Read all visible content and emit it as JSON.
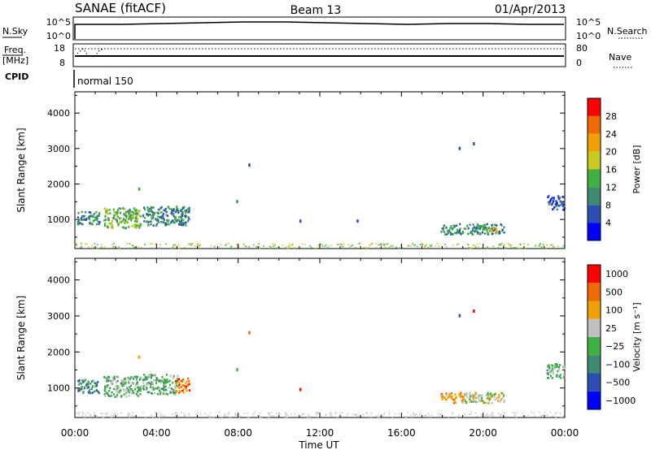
{
  "header": {
    "station": "SANAE (fitACF)",
    "beam": "Beam 13",
    "date": "01/Apr/2013"
  },
  "strip_labels": {
    "nsky": "N.Sky",
    "nsky_ticks": [
      "10^5",
      "10^0"
    ],
    "nsearch": "N.Search",
    "nsearch_ticks": [
      "10^5",
      "10^0"
    ],
    "freq": "Freq.",
    "freq_unit": "[MHz]",
    "freq_ticks": [
      "18",
      "8"
    ],
    "nave": "Nave",
    "nave_ticks": [
      "80",
      "0"
    ],
    "cpid": "CPID",
    "cpid_mode": "normal 150"
  },
  "chart_data": [
    {
      "type": "heatmap",
      "panel": "power",
      "ylabel": "Slant Range [km]",
      "yticks": [
        "1000",
        "2000",
        "3000",
        "4000"
      ],
      "ylim": [
        180,
        4600
      ],
      "xlim": [
        0,
        24
      ],
      "colorbar": {
        "label": "Power [dB]",
        "ticks": [
          "4",
          "8",
          "12",
          "16",
          "20",
          "24",
          "28"
        ],
        "colors": [
          "#0000ff",
          "#2a4fb0",
          "#3d8a70",
          "#40b040",
          "#c8c820",
          "#f0a000",
          "#f06800",
          "#ff0000"
        ]
      },
      "clusters": [
        {
          "t": [
            0.1,
            1.2
          ],
          "r": [
            880,
            1250
          ],
          "level": 2
        },
        {
          "t": [
            1.4,
            3.2
          ],
          "r": [
            780,
            1350
          ],
          "level": 3
        },
        {
          "t": [
            3.3,
            5.6
          ],
          "r": [
            850,
            1400
          ],
          "level": 2
        },
        {
          "t": [
            17.9,
            21.0
          ],
          "r": [
            600,
            900
          ],
          "level": 2
        },
        {
          "t": [
            20.1,
            20.7
          ],
          "r": [
            650,
            800
          ],
          "level": 4
        },
        {
          "t": [
            23.1,
            23.95
          ],
          "r": [
            1300,
            1700
          ],
          "level": 1
        }
      ],
      "points": [
        {
          "t": 8.5,
          "r": 2580,
          "level": 1
        },
        {
          "t": 7.9,
          "r": 1550,
          "level": 2
        },
        {
          "t": 3.1,
          "r": 1900,
          "level": 3
        },
        {
          "t": 11.0,
          "r": 1000,
          "level": 1
        },
        {
          "t": 13.8,
          "r": 1000,
          "level": 1
        },
        {
          "t": 18.8,
          "r": 3050,
          "level": 1
        },
        {
          "t": 19.5,
          "r": 3180,
          "level": 1
        }
      ]
    },
    {
      "type": "heatmap",
      "panel": "velocity",
      "ylabel": "Slant Range [km]",
      "yticks": [
        "1000",
        "2000",
        "3000",
        "4000"
      ],
      "ylim": [
        180,
        4600
      ],
      "xlim": [
        0,
        24
      ],
      "xticks": [
        "00:00",
        "04:00",
        "08:00",
        "12:00",
        "16:00",
        "20:00",
        "00:00"
      ],
      "xlabel": "Time UT",
      "colorbar": {
        "label": "Velocity [m s⁻¹]",
        "ticks": [
          "1000",
          "500",
          "100",
          "25",
          "−25",
          "−100",
          "−500",
          "−1000"
        ],
        "colors": [
          "#0000ff",
          "#2a4fb0",
          "#3d8a70",
          "#40b040",
          "#c0c0c0",
          "#f0a000",
          "#f06800",
          "#ff0000"
        ]
      },
      "clusters": [
        {
          "t": [
            0.1,
            1.2
          ],
          "r": [
            880,
            1250
          ],
          "level": 2
        },
        {
          "t": [
            1.4,
            3.2
          ],
          "r": [
            780,
            1350
          ],
          "level": 3
        },
        {
          "t": [
            3.3,
            5.0
          ],
          "r": [
            850,
            1400
          ],
          "level": 3
        },
        {
          "t": [
            4.9,
            5.6
          ],
          "r": [
            880,
            1300
          ],
          "level": 6
        },
        {
          "t": [
            17.9,
            19.0
          ],
          "r": [
            600,
            900
          ],
          "level": 5
        },
        {
          "t": [
            19.0,
            21.0
          ],
          "r": [
            600,
            900
          ],
          "level": 4
        },
        {
          "t": [
            23.1,
            23.95
          ],
          "r": [
            1300,
            1700
          ],
          "level": 3
        }
      ],
      "points": [
        {
          "t": 8.5,
          "r": 2580,
          "level": 6
        },
        {
          "t": 7.9,
          "r": 1550,
          "level": 3
        },
        {
          "t": 3.1,
          "r": 1900,
          "level": 5
        },
        {
          "t": 11.0,
          "r": 1000,
          "level": 7
        },
        {
          "t": 18.8,
          "r": 3050,
          "level": 1
        },
        {
          "t": 19.5,
          "r": 3180,
          "level": 7
        }
      ]
    }
  ]
}
